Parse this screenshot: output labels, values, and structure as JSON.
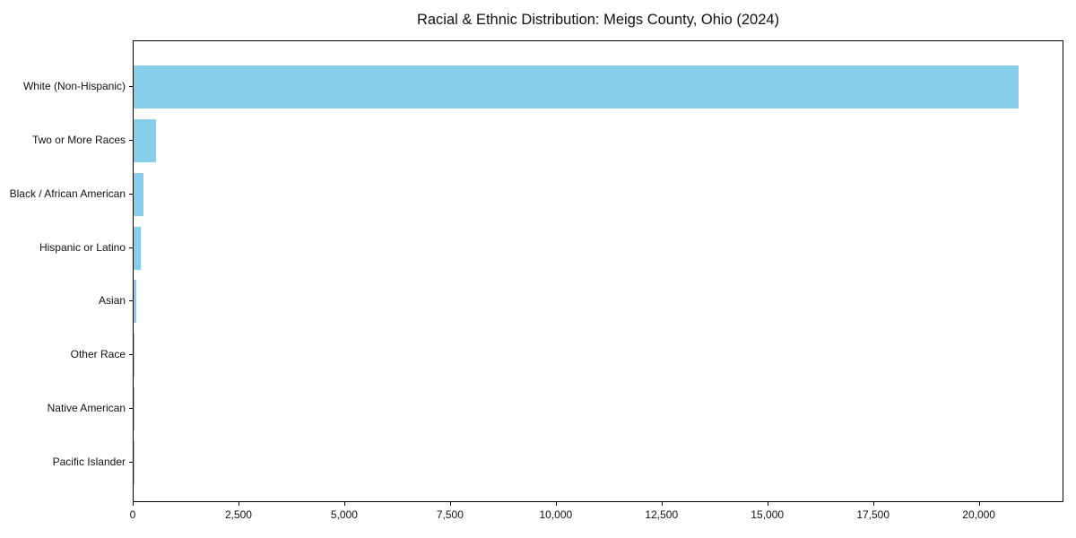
{
  "chart_data": {
    "type": "bar",
    "orientation": "horizontal",
    "title": "Racial & Ethnic Distribution: Meigs County, Ohio (2024)",
    "categories": [
      "White (Non-Hispanic)",
      "Two or More Races",
      "Black / African American",
      "Hispanic or Latino",
      "Asian",
      "Other Race",
      "Native American",
      "Pacific Islander"
    ],
    "values": [
      20950,
      530,
      225,
      170,
      65,
      18,
      8,
      3
    ],
    "xlabel": "",
    "ylabel": "",
    "xlim": [
      0,
      22000
    ],
    "x_ticks": [
      0,
      2500,
      5000,
      7500,
      10000,
      12500,
      15000,
      17500,
      20000
    ],
    "x_tick_labels": [
      "0",
      "2,500",
      "5,000",
      "7,500",
      "10,000",
      "12,500",
      "15,000",
      "17,500",
      "20,000"
    ],
    "bar_color": "#87CEEB",
    "spine_color": "#000000",
    "text_color": "#111111",
    "grid": false,
    "legend": null
  }
}
